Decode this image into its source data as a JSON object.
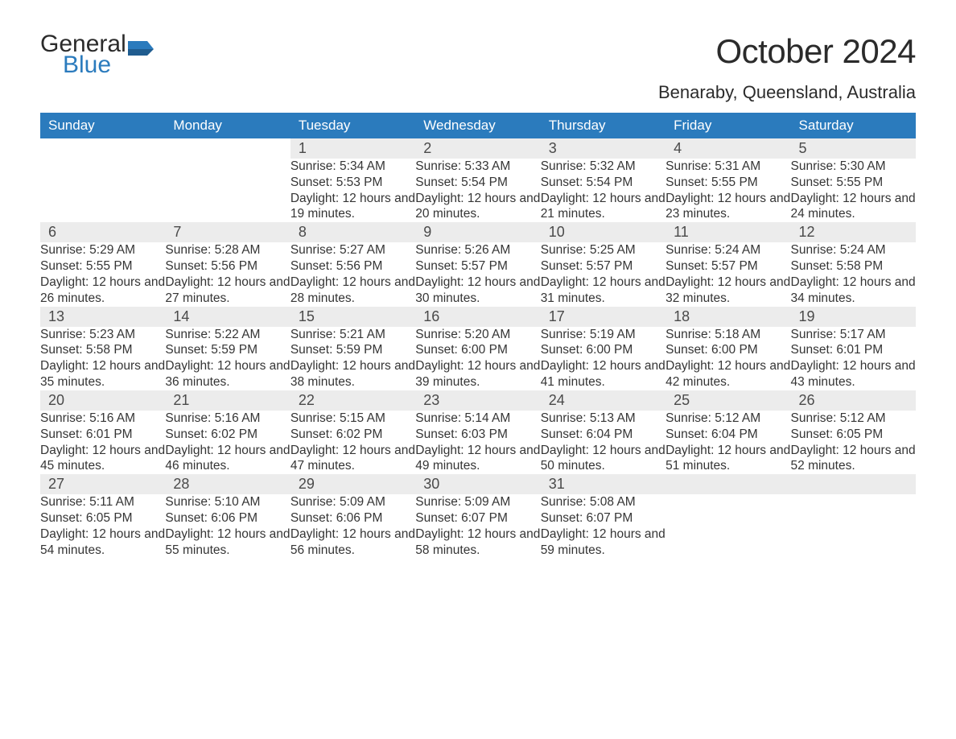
{
  "brand": {
    "word1": "General",
    "word2": "Blue",
    "color_dark": "#2b2b2b",
    "color_blue": "#2b7bbd"
  },
  "title": "October 2024",
  "location": "Benaraby, Queensland, Australia",
  "colors": {
    "header_bg": "#2b7bbd",
    "header_text": "#ffffff",
    "daynum_bg": "#ececec",
    "week_divider": "#2b7bbd",
    "body_text": "#353535",
    "page_bg": "#ffffff"
  },
  "typography": {
    "title_fontsize": 42,
    "location_fontsize": 22,
    "dayheader_fontsize": 17,
    "daynum_fontsize": 18,
    "detail_fontsize": 15.5
  },
  "day_headers": [
    "Sunday",
    "Monday",
    "Tuesday",
    "Wednesday",
    "Thursday",
    "Friday",
    "Saturday"
  ],
  "weeks": [
    [
      null,
      null,
      {
        "n": "1",
        "sunrise": "5:34 AM",
        "sunset": "5:53 PM",
        "daylight": "12 hours and 19 minutes."
      },
      {
        "n": "2",
        "sunrise": "5:33 AM",
        "sunset": "5:54 PM",
        "daylight": "12 hours and 20 minutes."
      },
      {
        "n": "3",
        "sunrise": "5:32 AM",
        "sunset": "5:54 PM",
        "daylight": "12 hours and 21 minutes."
      },
      {
        "n": "4",
        "sunrise": "5:31 AM",
        "sunset": "5:55 PM",
        "daylight": "12 hours and 23 minutes."
      },
      {
        "n": "5",
        "sunrise": "5:30 AM",
        "sunset": "5:55 PM",
        "daylight": "12 hours and 24 minutes."
      }
    ],
    [
      {
        "n": "6",
        "sunrise": "5:29 AM",
        "sunset": "5:55 PM",
        "daylight": "12 hours and 26 minutes."
      },
      {
        "n": "7",
        "sunrise": "5:28 AM",
        "sunset": "5:56 PM",
        "daylight": "12 hours and 27 minutes."
      },
      {
        "n": "8",
        "sunrise": "5:27 AM",
        "sunset": "5:56 PM",
        "daylight": "12 hours and 28 minutes."
      },
      {
        "n": "9",
        "sunrise": "5:26 AM",
        "sunset": "5:57 PM",
        "daylight": "12 hours and 30 minutes."
      },
      {
        "n": "10",
        "sunrise": "5:25 AM",
        "sunset": "5:57 PM",
        "daylight": "12 hours and 31 minutes."
      },
      {
        "n": "11",
        "sunrise": "5:24 AM",
        "sunset": "5:57 PM",
        "daylight": "12 hours and 32 minutes."
      },
      {
        "n": "12",
        "sunrise": "5:24 AM",
        "sunset": "5:58 PM",
        "daylight": "12 hours and 34 minutes."
      }
    ],
    [
      {
        "n": "13",
        "sunrise": "5:23 AM",
        "sunset": "5:58 PM",
        "daylight": "12 hours and 35 minutes."
      },
      {
        "n": "14",
        "sunrise": "5:22 AM",
        "sunset": "5:59 PM",
        "daylight": "12 hours and 36 minutes."
      },
      {
        "n": "15",
        "sunrise": "5:21 AM",
        "sunset": "5:59 PM",
        "daylight": "12 hours and 38 minutes."
      },
      {
        "n": "16",
        "sunrise": "5:20 AM",
        "sunset": "6:00 PM",
        "daylight": "12 hours and 39 minutes."
      },
      {
        "n": "17",
        "sunrise": "5:19 AM",
        "sunset": "6:00 PM",
        "daylight": "12 hours and 41 minutes."
      },
      {
        "n": "18",
        "sunrise": "5:18 AM",
        "sunset": "6:00 PM",
        "daylight": "12 hours and 42 minutes."
      },
      {
        "n": "19",
        "sunrise": "5:17 AM",
        "sunset": "6:01 PM",
        "daylight": "12 hours and 43 minutes."
      }
    ],
    [
      {
        "n": "20",
        "sunrise": "5:16 AM",
        "sunset": "6:01 PM",
        "daylight": "12 hours and 45 minutes."
      },
      {
        "n": "21",
        "sunrise": "5:16 AM",
        "sunset": "6:02 PM",
        "daylight": "12 hours and 46 minutes."
      },
      {
        "n": "22",
        "sunrise": "5:15 AM",
        "sunset": "6:02 PM",
        "daylight": "12 hours and 47 minutes."
      },
      {
        "n": "23",
        "sunrise": "5:14 AM",
        "sunset": "6:03 PM",
        "daylight": "12 hours and 49 minutes."
      },
      {
        "n": "24",
        "sunrise": "5:13 AM",
        "sunset": "6:04 PM",
        "daylight": "12 hours and 50 minutes."
      },
      {
        "n": "25",
        "sunrise": "5:12 AM",
        "sunset": "6:04 PM",
        "daylight": "12 hours and 51 minutes."
      },
      {
        "n": "26",
        "sunrise": "5:12 AM",
        "sunset": "6:05 PM",
        "daylight": "12 hours and 52 minutes."
      }
    ],
    [
      {
        "n": "27",
        "sunrise": "5:11 AM",
        "sunset": "6:05 PM",
        "daylight": "12 hours and 54 minutes."
      },
      {
        "n": "28",
        "sunrise": "5:10 AM",
        "sunset": "6:06 PM",
        "daylight": "12 hours and 55 minutes."
      },
      {
        "n": "29",
        "sunrise": "5:09 AM",
        "sunset": "6:06 PM",
        "daylight": "12 hours and 56 minutes."
      },
      {
        "n": "30",
        "sunrise": "5:09 AM",
        "sunset": "6:07 PM",
        "daylight": "12 hours and 58 minutes."
      },
      {
        "n": "31",
        "sunrise": "5:08 AM",
        "sunset": "6:07 PM",
        "daylight": "12 hours and 59 minutes."
      },
      null,
      null
    ]
  ],
  "labels": {
    "sunrise": "Sunrise: ",
    "sunset": "Sunset: ",
    "daylight": "Daylight: "
  }
}
